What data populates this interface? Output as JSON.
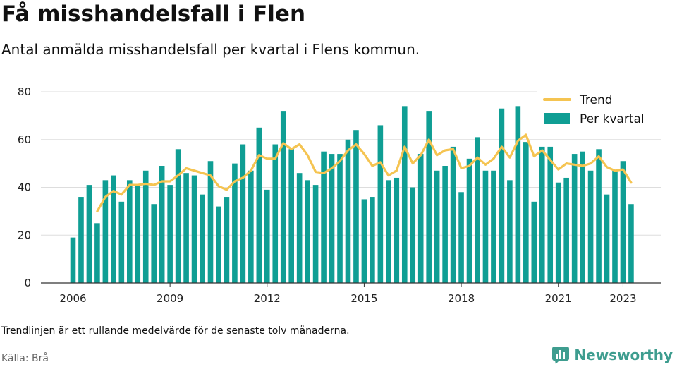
{
  "header": {
    "title": "Få misshandelsfall i Flen",
    "subtitle": "Antal anmälda misshandelsfall per kvartal i Flens kommun."
  },
  "footer": {
    "note": "Trendlinjen är ett rullande medelvärde för de senaste tolv månaderna.",
    "source": "Källa: Brå",
    "brand": "Newsworthy"
  },
  "colors": {
    "bars": "#0f9e94",
    "trend": "#f5c451",
    "grid": "#dddddd",
    "brand": "#3e9d8f"
  },
  "icons": {
    "brand": "bar-chart-logo-icon"
  },
  "chart_data": {
    "type": "bar",
    "x_unit": "quarter",
    "x_start": "2006 Q1",
    "ylim": [
      0,
      80
    ],
    "yticks": [
      0,
      20,
      40,
      60,
      80
    ],
    "xticks": [
      "2006",
      "2009",
      "2012",
      "2015",
      "2018",
      "2021",
      "2023"
    ],
    "grid": true,
    "legend_position": "top-right",
    "series": [
      {
        "name": "Per kvartal",
        "type": "bar",
        "values": [
          19,
          36,
          41,
          25,
          43,
          45,
          34,
          43,
          41,
          47,
          33,
          49,
          41,
          56,
          46,
          45,
          37,
          51,
          32,
          36,
          50,
          58,
          47,
          65,
          39,
          58,
          72,
          56,
          46,
          43,
          41,
          55,
          54,
          54,
          60,
          64,
          35,
          36,
          66,
          43,
          44,
          74,
          40,
          54,
          72,
          47,
          49,
          57,
          38,
          52,
          61,
          47,
          47,
          73,
          43,
          74,
          59,
          34,
          57,
          57,
          42,
          44,
          54,
          55,
          47,
          56,
          37,
          47,
          51,
          33
        ]
      },
      {
        "name": "Trend",
        "type": "line",
        "values": [
          null,
          null,
          null,
          30,
          36,
          38.5,
          37,
          41,
          41,
          41.5,
          41,
          42.5,
          42.5,
          45,
          48,
          47,
          46,
          45,
          40.5,
          39,
          42.5,
          44,
          47,
          53.5,
          52,
          52,
          58.5,
          56,
          58,
          53.5,
          46.5,
          46,
          48,
          51,
          55.5,
          58,
          54,
          49,
          50.5,
          45,
          47,
          57,
          50,
          53.5,
          60,
          53.5,
          55.5,
          56,
          48,
          49,
          52.5,
          49.5,
          52,
          57,
          52.5,
          59.5,
          62,
          53,
          55.5,
          51.5,
          47.5,
          50,
          49.5,
          49,
          50,
          53,
          48.5,
          47,
          47.5,
          42
        ]
      }
    ]
  }
}
